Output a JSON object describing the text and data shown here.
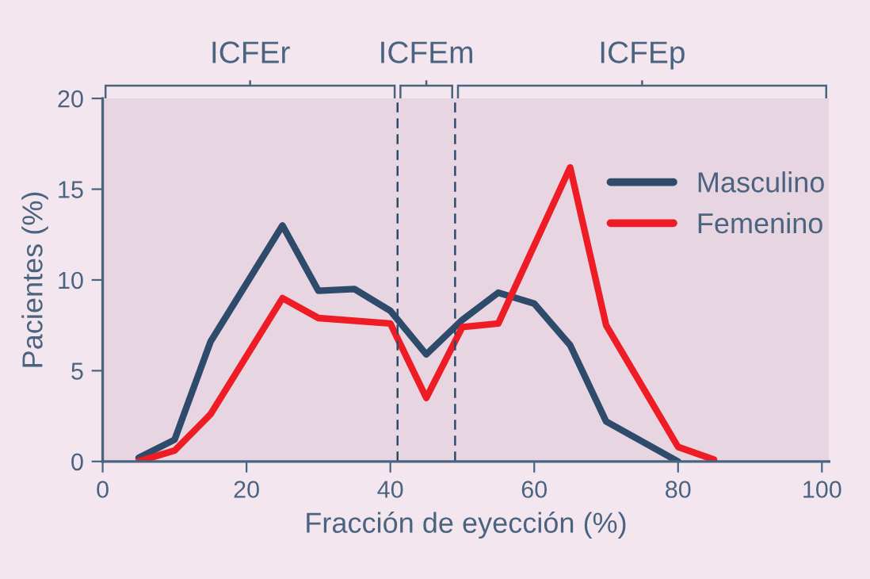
{
  "chart_data": {
    "type": "line",
    "xlabel": "Fracción de eyección (%)",
    "ylabel": "Pacientes (%)",
    "series": [
      {
        "name": "Masculino",
        "color": "#2f4b6b",
        "x": [
          5,
          10,
          15,
          25,
          30,
          35,
          40,
          45,
          50,
          55,
          60,
          65,
          70,
          80
        ],
        "values": [
          0.2,
          1.2,
          6.6,
          13.0,
          9.4,
          9.5,
          8.3,
          5.9,
          7.8,
          9.3,
          8.7,
          6.4,
          2.2,
          0
        ]
      },
      {
        "name": "Femenino",
        "color": "#ee1c25",
        "x": [
          5,
          10,
          15,
          25,
          30,
          40,
          45,
          50,
          55,
          65,
          70,
          80,
          85
        ],
        "values": [
          0,
          0.6,
          2.6,
          9.0,
          7.9,
          7.6,
          3.5,
          7.4,
          7.6,
          16.2,
          7.5,
          0.8,
          0.1
        ]
      }
    ],
    "xlim": [
      0,
      101
    ],
    "xticks": [
      0,
      20,
      40,
      60,
      80,
      100
    ],
    "ylim": [
      0,
      20
    ],
    "yticks": [
      0,
      5,
      10,
      15,
      20
    ],
    "ref_lines": [
      {
        "axis": "x",
        "value": 41,
        "line_style": "dashed",
        "color": "#2f4b6b"
      },
      {
        "axis": "x",
        "value": 49,
        "line_style": "dashed",
        "color": "#2f4b6b"
      }
    ],
    "bands": [
      {
        "axis": "x",
        "from": 0,
        "to": 41,
        "label": "ICFEr",
        "color": "#e8d5e2"
      },
      {
        "axis": "x",
        "from": 41,
        "to": 49,
        "label": "ICFEm",
        "color": "#e8d5e2"
      },
      {
        "axis": "x",
        "from": 49,
        "to": 101,
        "label": "ICFEp",
        "color": "#e8d5e2"
      }
    ],
    "legend": "top right",
    "grid": false,
    "marker": "none",
    "line_style": "solid"
  }
}
